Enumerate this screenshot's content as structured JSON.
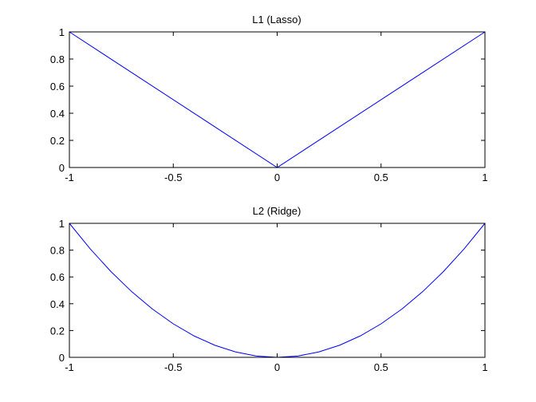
{
  "chart_data": [
    {
      "type": "line",
      "title": "L1 (Lasso)",
      "xlim": [
        -1,
        1
      ],
      "ylim": [
        0,
        1
      ],
      "xticks": [
        "-1",
        "-0.5",
        "0",
        "0.5",
        "1"
      ],
      "yticks": [
        "0",
        "0.2",
        "0.4",
        "0.6",
        "0.8",
        "1"
      ],
      "grid": false,
      "series": [
        {
          "color": "#0000ff",
          "x": [
            -1,
            0,
            1
          ],
          "y": [
            1,
            0,
            1
          ]
        }
      ]
    },
    {
      "type": "line",
      "title": "L2 (Ridge)",
      "xlim": [
        -1,
        1
      ],
      "ylim": [
        0,
        1
      ],
      "xticks": [
        "-1",
        "-0.5",
        "0",
        "0.5",
        "1"
      ],
      "yticks": [
        "0",
        "0.2",
        "0.4",
        "0.6",
        "0.8",
        "1"
      ],
      "grid": false,
      "series": [
        {
          "color": "#0000ff",
          "x": [
            -1,
            -0.9,
            -0.8,
            -0.7,
            -0.6,
            -0.5,
            -0.4,
            -0.3,
            -0.2,
            -0.1,
            0,
            0.1,
            0.2,
            0.3,
            0.4,
            0.5,
            0.6,
            0.7,
            0.8,
            0.9,
            1
          ],
          "y": [
            1,
            0.81,
            0.64,
            0.49,
            0.36,
            0.25,
            0.16,
            0.09,
            0.04,
            0.01,
            0,
            0.01,
            0.04,
            0.09,
            0.16,
            0.25,
            0.36,
            0.49,
            0.64,
            0.81,
            1
          ]
        }
      ]
    }
  ]
}
